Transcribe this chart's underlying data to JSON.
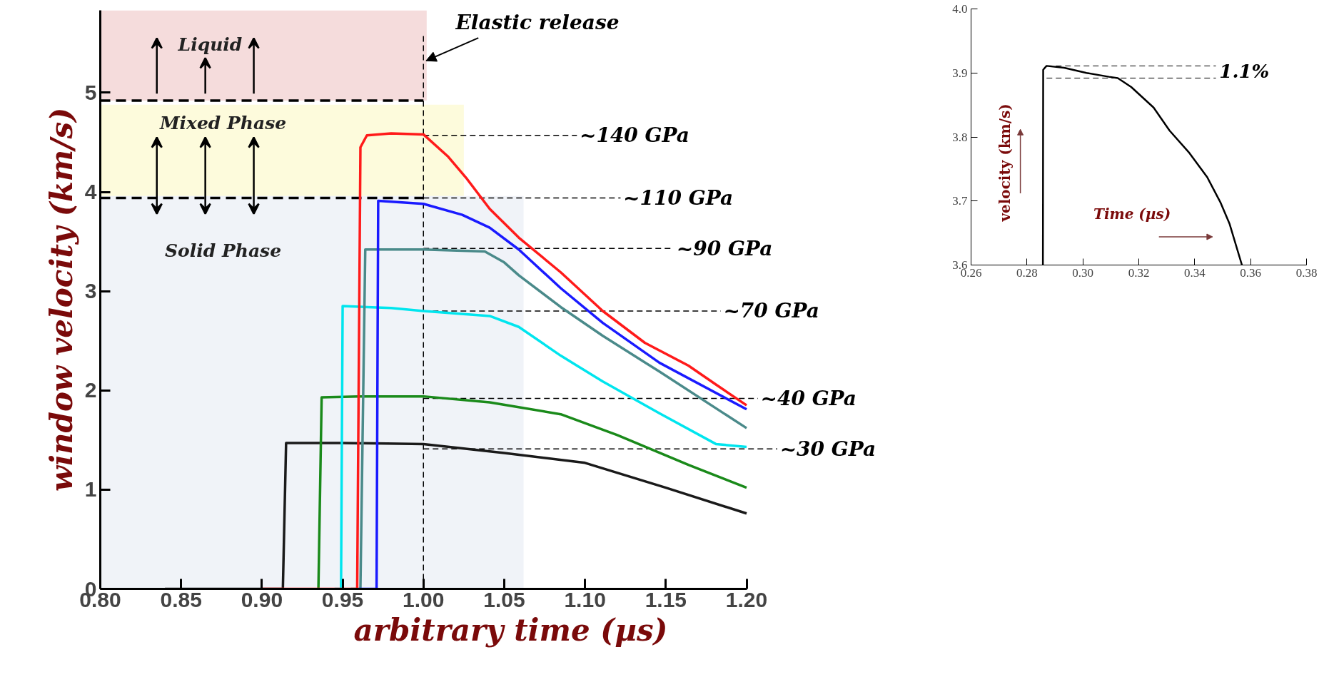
{
  "chart_data": [
    {
      "type": "line",
      "xlabel": "arbitrary time (µs)",
      "ylabel": "window velocity (km/s)",
      "xlim": [
        0.8,
        1.2
      ],
      "ylim": [
        0,
        5.83
      ],
      "xticks": [
        {
          "value": 0.8,
          "label": "0.80"
        },
        {
          "value": 0.85,
          "label": "0.85"
        },
        {
          "value": 0.9,
          "label": "0.90"
        },
        {
          "value": 0.95,
          "label": "0.95"
        },
        {
          "value": 1.0,
          "label": "1.00"
        },
        {
          "value": 1.05,
          "label": "1.05"
        },
        {
          "value": 1.1,
          "label": "1.10"
        },
        {
          "value": 1.15,
          "label": "1.15"
        },
        {
          "value": 1.2,
          "label": "1.20"
        }
      ],
      "yticks": [
        0,
        1,
        2,
        3,
        4,
        5
      ],
      "grid": false,
      "line_style": "solid",
      "marker": "none",
      "bands": [
        {
          "axis": "y",
          "from": 4.92,
          "to": 5.83,
          "label": "Liquid",
          "color": "#f5dcdc"
        },
        {
          "axis": "y",
          "from": 3.96,
          "to": 4.88,
          "label": "Mixed Phase",
          "color": "#fdfbdc"
        },
        {
          "axis": "y",
          "from": 0,
          "to": 3.96,
          "label": "Solid Phase",
          "color": "#f0f3f8"
        }
      ],
      "ref_lines": [
        {
          "axis": "x",
          "value": 1.0,
          "label": "Elastic release",
          "line_style": "dashed"
        },
        {
          "axis": "y",
          "value": 4.92,
          "label": null,
          "line_style": "dashed"
        },
        {
          "axis": "y",
          "value": 3.94,
          "label": null,
          "line_style": "dashed"
        },
        {
          "axis": "y",
          "value": 4.57,
          "label": "~140 GPa",
          "line_style": "dashed"
        },
        {
          "axis": "y",
          "value": 3.94,
          "label": "~110 GPa",
          "line_style": "dashed"
        },
        {
          "axis": "y",
          "value": 3.43,
          "label": "~90 GPa",
          "line_style": "dashed"
        },
        {
          "axis": "y",
          "value": 2.8,
          "label": "~70 GPa",
          "line_style": "dashed"
        },
        {
          "axis": "y",
          "value": 1.92,
          "label": "~40 GPa",
          "line_style": "dashed"
        },
        {
          "axis": "y",
          "value": 1.41,
          "label": "~30 GPa",
          "line_style": "dashed"
        }
      ],
      "series": [
        {
          "color": "#1a1a1a",
          "x": [
            0.84,
            0.913,
            0.915,
            0.95,
            1.0,
            1.05,
            1.1,
            1.15,
            1.2
          ],
          "values": [
            0,
            0,
            1.47,
            1.47,
            1.46,
            1.37,
            1.27,
            1.02,
            0.76
          ]
        },
        {
          "color": "#1a8a1a",
          "x": [
            0.935,
            0.937,
            0.96,
            1.0,
            1.041,
            1.085,
            1.12,
            1.164,
            1.2
          ],
          "values": [
            0,
            1.93,
            1.94,
            1.94,
            1.88,
            1.76,
            1.55,
            1.25,
            1.02
          ]
        },
        {
          "color": "#00e5ee",
          "x": [
            0.945,
            0.949,
            0.95,
            0.98,
            1.0,
            1.041,
            1.059,
            1.085,
            1.111,
            1.146,
            1.181,
            1.2
          ],
          "values": [
            0,
            0,
            2.85,
            2.83,
            2.8,
            2.75,
            2.64,
            2.35,
            2.09,
            1.77,
            1.46,
            1.43
          ]
        },
        {
          "color": "#4a8a8a",
          "x": [
            0.955,
            0.961,
            0.964,
            1.0,
            1.038,
            1.05,
            1.059,
            1.085,
            1.111,
            1.146,
            1.2
          ],
          "values": [
            0,
            0,
            3.42,
            3.42,
            3.4,
            3.29,
            3.16,
            2.84,
            2.55,
            2.19,
            1.62
          ]
        },
        {
          "color": "#1a1aff",
          "x": [
            0.96,
            0.971,
            0.972,
            1.0,
            1.024,
            1.041,
            1.059,
            1.085,
            1.111,
            1.146,
            1.2
          ],
          "values": [
            0,
            0,
            3.91,
            3.88,
            3.77,
            3.64,
            3.42,
            3.03,
            2.68,
            2.28,
            1.81
          ]
        },
        {
          "color": "#ff1a1a",
          "x": [
            0.9,
            0.959,
            0.961,
            0.965,
            0.98,
            1.0,
            1.015,
            1.027,
            1.041,
            1.059,
            1.085,
            1.111,
            1.137,
            1.164,
            1.181,
            1.2
          ],
          "values": [
            0,
            0,
            4.45,
            4.57,
            4.59,
            4.58,
            4.36,
            4.13,
            3.83,
            3.54,
            3.19,
            2.8,
            2.48,
            2.25,
            2.06,
            1.85
          ]
        }
      ]
    },
    {
      "type": "line",
      "xlabel": "Time (µs)",
      "ylabel": "velocity (km/s)",
      "xlim": [
        0.26,
        0.38
      ],
      "ylim": [
        3.6,
        4.0
      ],
      "xticks": [
        {
          "value": 0.26,
          "label": "0.26"
        },
        {
          "value": 0.28,
          "label": "0.28"
        },
        {
          "value": 0.3,
          "label": "0.30"
        },
        {
          "value": 0.32,
          "label": "0.32"
        },
        {
          "value": 0.34,
          "label": "0.34"
        },
        {
          "value": 0.36,
          "label": "0.36"
        },
        {
          "value": 0.38,
          "label": "0.38"
        }
      ],
      "yticks": [
        {
          "value": 3.6,
          "label": "3.6"
        },
        {
          "value": 3.7,
          "label": "3.7"
        },
        {
          "value": 3.8,
          "label": "3.8"
        },
        {
          "value": 3.9,
          "label": "3.9"
        },
        {
          "value": 4.0,
          "label": "4.0"
        }
      ],
      "grid": false,
      "line_style": "solid",
      "marker": "none",
      "ref_lines": [
        {
          "axis": "y",
          "value": 3.911,
          "label": null,
          "line_style": "dashed"
        },
        {
          "axis": "y",
          "value": 3.892,
          "label": null,
          "line_style": "dashed"
        }
      ],
      "annotations": [
        "1.1%"
      ],
      "series": [
        {
          "color": "#000000",
          "x": [
            0.2857,
            0.2858,
            0.287,
            0.2933,
            0.3013,
            0.3093,
            0.3125,
            0.3173,
            0.3253,
            0.331,
            0.3381,
            0.3445,
            0.3493,
            0.3525,
            0.3569
          ],
          "values": [
            3.6,
            3.905,
            3.911,
            3.908,
            3.9,
            3.894,
            3.892,
            3.878,
            3.846,
            3.81,
            3.775,
            3.737,
            3.697,
            3.664,
            3.6
          ]
        }
      ]
    }
  ]
}
